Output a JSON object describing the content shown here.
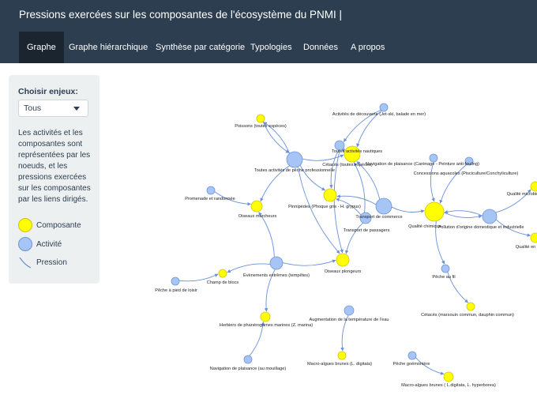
{
  "app": {
    "title": "Pressions exercées sur les composantes de l'écosystème du PNMI |"
  },
  "nav": {
    "tabs": [
      {
        "label": "Graphe",
        "active": true
      },
      {
        "label": "Graphe hiérarchique",
        "active": false
      },
      {
        "label": "Synthèse par catégorie",
        "active": false
      },
      {
        "label": "Typologies",
        "active": false
      },
      {
        "label": "Données",
        "active": false
      },
      {
        "label": "A propos",
        "active": false
      }
    ]
  },
  "sidebar": {
    "select_label": "Choisir enjeux:",
    "select_value": "Tous",
    "description": "Les activités et les composantes sont représentées par les noeuds, et les pressions exercées sur les composantes par les liens dirigés.",
    "legend": {
      "composante": "Composante",
      "activite": "Activité",
      "pression": "Pression"
    }
  },
  "colors": {
    "nav_bg": "#2c3e50",
    "tab_active_bg": "#1a252f",
    "sidebar_bg": "#ecf0f1",
    "composante": "#ffff00",
    "activite": "#a6c4f5",
    "activite_border": "#6f95d8",
    "edge": "#6a8fd8"
  },
  "graph": {
    "nodes": [
      {
        "id": "poissons",
        "label": "Poissons (toutes espèces)",
        "type": "composante"
      },
      {
        "id": "act_decouverte",
        "label": "Activités de découverte (Jet-ski, balade en mer)",
        "type": "activite"
      },
      {
        "id": "toutes_act_naut",
        "label": "Toutes activités nautiques",
        "type": "activite"
      },
      {
        "id": "cetaces_all",
        "label": "Cétacés (toutes espèces)",
        "type": "composante"
      },
      {
        "id": "peche_pro",
        "label": "Toutes activités de pêche professionnelle",
        "type": "activite"
      },
      {
        "id": "nav_plaisance_car",
        "label": "Navigation de plaisance (Carénage - Peinture anti-fouling)",
        "type": "activite"
      },
      {
        "id": "concessions",
        "label": "Concessions aquacoles (Pisciculture/Conchyliculture)",
        "type": "activite"
      },
      {
        "id": "qualite_micro",
        "label": "Qualité microbiologique",
        "type": "composante"
      },
      {
        "id": "promenade",
        "label": "Promenade et randonnée",
        "type": "activite"
      },
      {
        "id": "pinnipedes",
        "label": "Pinnipèdes (Phoque gris - H. grypus)",
        "type": "composante"
      },
      {
        "id": "transport_com",
        "label": "Transport de commerce",
        "type": "activite"
      },
      {
        "id": "qualite_chimique",
        "label": "Qualité chimique",
        "type": "composante"
      },
      {
        "id": "pollution",
        "label": "Pollution d'origine domestique et industrielle",
        "type": "activite"
      },
      {
        "id": "oiseaux_marcheurs",
        "label": "Oiseaux marcheurs",
        "type": "composante"
      },
      {
        "id": "transport_pass",
        "label": "Transport de passagers",
        "type": "activite"
      },
      {
        "id": "qualite_eau",
        "label": "Qualité en eau",
        "type": "composante"
      },
      {
        "id": "evenements",
        "label": "Évènements extrêmes (tempêtes)",
        "type": "activite"
      },
      {
        "id": "oiseaux_plongeurs",
        "label": "Oiseaux plongeurs",
        "type": "composante"
      },
      {
        "id": "peche_fil",
        "label": "Pêche au fil",
        "type": "activite"
      },
      {
        "id": "champ_blocs",
        "label": "Champ de blocs",
        "type": "composante"
      },
      {
        "id": "peche_pied",
        "label": "Pêche à pied de loisir",
        "type": "activite"
      },
      {
        "id": "augmentation_temp",
        "label": "Augmentation de la température de l'eau",
        "type": "activite"
      },
      {
        "id": "cetaces_marsouin",
        "label": "Cétacés (marsouin commun, dauphin commun)",
        "type": "composante"
      },
      {
        "id": "herbiers",
        "label": "Herbiers de phanérogames marines (Z. marina)",
        "type": "composante"
      },
      {
        "id": "nav_mouillage",
        "label": "Navigation de plaisance (au mouillage)",
        "type": "activite"
      },
      {
        "id": "macro_digitata",
        "label": "Macro-algues brunes (L. digitata)",
        "type": "composante"
      },
      {
        "id": "peche_goemoniere",
        "label": "Pêche goémonière",
        "type": "activite"
      },
      {
        "id": "macro_both",
        "label": "Macro-algues brunes ( L.digitata, L. hyperborea)",
        "type": "composante"
      }
    ],
    "edges": [
      [
        "act_decouverte",
        "toutes_act_naut"
      ],
      [
        "act_decouverte",
        "cetaces_all"
      ],
      [
        "toutes_act_naut",
        "cetaces_all"
      ],
      [
        "toutes_act_naut",
        "pinnipedes"
      ],
      [
        "toutes_act_naut",
        "oiseaux_plongeurs"
      ],
      [
        "poissons",
        "peche_pro"
      ],
      [
        "peche_pro",
        "poissons"
      ],
      [
        "peche_pro",
        "cetaces_all"
      ],
      [
        "peche_pro",
        "pinnipedes"
      ],
      [
        "peche_pro",
        "oiseaux_marcheurs"
      ],
      [
        "peche_pro",
        "oiseaux_plongeurs"
      ],
      [
        "nav_plaisance_car",
        "qualite_chimique"
      ],
      [
        "concessions",
        "qualite_chimique"
      ],
      [
        "promenade",
        "oiseaux_marcheurs"
      ],
      [
        "transport_com",
        "cetaces_all"
      ],
      [
        "transport_com",
        "pinnipedes"
      ],
      [
        "transport_com",
        "qualite_chimique"
      ],
      [
        "transport_pass",
        "cetaces_all"
      ],
      [
        "transport_pass",
        "pinnipedes"
      ],
      [
        "transport_pass",
        "oiseaux_plongeurs"
      ],
      [
        "pollution",
        "qualite_chimique"
      ],
      [
        "qualite_chimique",
        "pollution"
      ],
      [
        "pollution",
        "qualite_micro"
      ],
      [
        "pollution",
        "qualite_eau"
      ],
      [
        "evenements",
        "oiseaux_marcheurs"
      ],
      [
        "evenements",
        "champ_blocs"
      ],
      [
        "evenements",
        "oiseaux_plongeurs"
      ],
      [
        "evenements",
        "herbiers"
      ],
      [
        "peche_pied",
        "champ_blocs"
      ],
      [
        "nav_mouillage",
        "herbiers"
      ],
      [
        "qualite_chimique",
        "peche_fil"
      ],
      [
        "peche_fil",
        "cetaces_marsouin"
      ],
      [
        "augmentation_temp",
        "macro_digitata"
      ],
      [
        "peche_goemoniere",
        "macro_both"
      ]
    ]
  }
}
